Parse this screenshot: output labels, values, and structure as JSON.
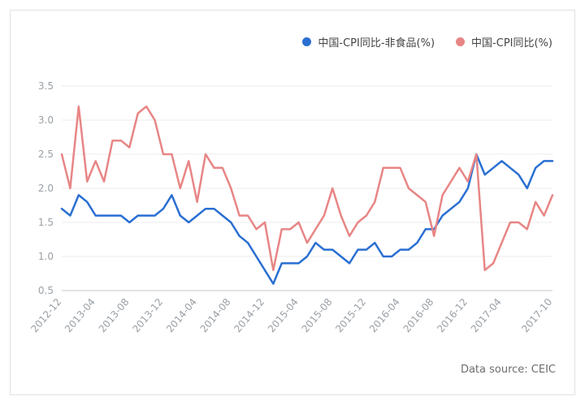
{
  "legend": [
    {
      "label": "中国-CPI同比-非食品(%)",
      "color": "#2a6fd2"
    },
    {
      "label": "中国-CPI同比(%)",
      "color": "#e88585"
    }
  ],
  "source": "Data source: CEIC",
  "chart_data": {
    "type": "line",
    "title": "",
    "xlabel": "",
    "ylabel": "",
    "ylim": [
      0.5,
      3.5
    ],
    "yticks": [
      0.5,
      1.0,
      1.5,
      2.0,
      2.5,
      3.0,
      3.5
    ],
    "ytick_labels": [
      "0.5",
      "1.0",
      "1.5",
      "2.0",
      "2.5",
      "3.0",
      "3.5"
    ],
    "xtick_labels": [
      "2012-12",
      "2013-04",
      "2013-08",
      "2013-12",
      "2014-04",
      "2014-08",
      "2014-12",
      "2015-04",
      "2015-08",
      "2015-12",
      "2016-04",
      "2016-08",
      "2016-12",
      "2017-04",
      "2017-10"
    ],
    "grid": "horizontal",
    "legend_position": "top-right",
    "x": [
      "2012-12",
      "2013-01",
      "2013-02",
      "2013-03",
      "2013-04",
      "2013-05",
      "2013-06",
      "2013-07",
      "2013-08",
      "2013-09",
      "2013-10",
      "2013-11",
      "2013-12",
      "2014-01",
      "2014-02",
      "2014-03",
      "2014-04",
      "2014-05",
      "2014-06",
      "2014-07",
      "2014-08",
      "2014-09",
      "2014-10",
      "2014-11",
      "2014-12",
      "2015-01",
      "2015-02",
      "2015-03",
      "2015-04",
      "2015-05",
      "2015-06",
      "2015-07",
      "2015-08",
      "2015-09",
      "2015-10",
      "2015-11",
      "2015-12",
      "2016-01",
      "2016-02",
      "2016-03",
      "2016-04",
      "2016-05",
      "2016-06",
      "2016-07",
      "2016-08",
      "2016-09",
      "2016-10",
      "2016-11",
      "2016-12",
      "2017-01",
      "2017-02",
      "2017-03",
      "2017-04",
      "2017-05",
      "2017-06",
      "2017-07",
      "2017-08",
      "2017-09",
      "2017-10"
    ],
    "series": [
      {
        "name": "中国-CPI同比-非食品(%)",
        "color": "#2a6fd2",
        "values": [
          1.7,
          1.6,
          1.9,
          1.8,
          1.6,
          1.6,
          1.6,
          1.6,
          1.5,
          1.6,
          1.6,
          1.6,
          1.7,
          1.9,
          1.6,
          1.5,
          1.6,
          1.7,
          1.7,
          1.6,
          1.5,
          1.3,
          1.2,
          1.0,
          0.8,
          0.6,
          0.9,
          0.9,
          0.9,
          1.0,
          1.2,
          1.1,
          1.1,
          1.0,
          0.9,
          1.1,
          1.1,
          1.2,
          1.0,
          1.0,
          1.1,
          1.1,
          1.2,
          1.4,
          1.4,
          1.6,
          1.7,
          1.8,
          2.0,
          2.5,
          2.2,
          2.3,
          2.4,
          2.3,
          2.2,
          2.0,
          2.3,
          2.4,
          2.4
        ]
      },
      {
        "name": "中国-CPI同比(%)",
        "color": "#e88585",
        "values": [
          2.5,
          2.0,
          3.2,
          2.1,
          2.4,
          2.1,
          2.7,
          2.7,
          2.6,
          3.1,
          3.2,
          3.0,
          2.5,
          2.5,
          2.0,
          2.4,
          1.8,
          2.5,
          2.3,
          2.3,
          2.0,
          1.6,
          1.6,
          1.4,
          1.5,
          0.8,
          1.4,
          1.4,
          1.5,
          1.2,
          1.4,
          1.6,
          2.0,
          1.6,
          1.3,
          1.5,
          1.6,
          1.8,
          2.3,
          2.3,
          2.3,
          2.0,
          1.9,
          1.8,
          1.3,
          1.9,
          2.1,
          2.3,
          2.1,
          2.5,
          0.8,
          0.9,
          1.2,
          1.5,
          1.5,
          1.4,
          1.8,
          1.6,
          1.9
        ]
      }
    ]
  }
}
